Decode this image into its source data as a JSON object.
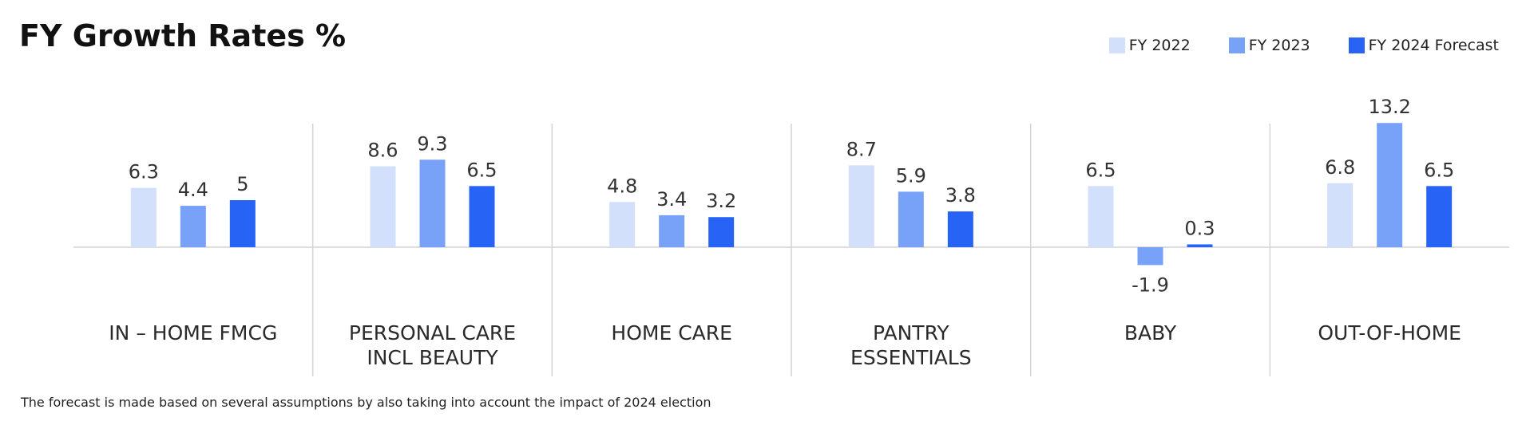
{
  "chart_data": {
    "type": "bar",
    "title": "FY Growth Rates %",
    "categories": [
      "IN – HOME FMCG",
      "PERSONAL CARE\nINCL BEAUTY",
      "HOME CARE",
      "PANTRY\nESSENTIALS",
      "BABY",
      "OUT-OF-HOME"
    ],
    "series": [
      {
        "name": "FY 2022",
        "values": [
          6.3,
          8.6,
          4.8,
          8.7,
          6.5,
          6.8
        ],
        "color": "#d2e0fb"
      },
      {
        "name": "FY 2023",
        "values": [
          4.4,
          9.3,
          3.4,
          5.9,
          -1.9,
          13.2
        ],
        "color": "#78a2f8"
      },
      {
        "name": "FY 2024 Forecast",
        "values": [
          5,
          6.5,
          3.2,
          3.8,
          0.3,
          6.5
        ],
        "color": "#2763f5"
      }
    ],
    "value_labels": [
      [
        "6.3",
        "8.6",
        "4.8",
        "8.7",
        "6.5",
        "6.8"
      ],
      [
        "4.4",
        "9.3",
        "3.4",
        "5.9",
        "-1.9",
        "13.2"
      ],
      [
        "5",
        "6.5",
        "3.2",
        "3.8",
        "0.3",
        "6.5"
      ]
    ],
    "xlabel": "",
    "ylabel": "",
    "ylim": [
      -2,
      14
    ],
    "grid": false,
    "legend": "top-right"
  },
  "footnote": "The forecast is made based on several assumptions by also taking into account the impact of 2024 election"
}
